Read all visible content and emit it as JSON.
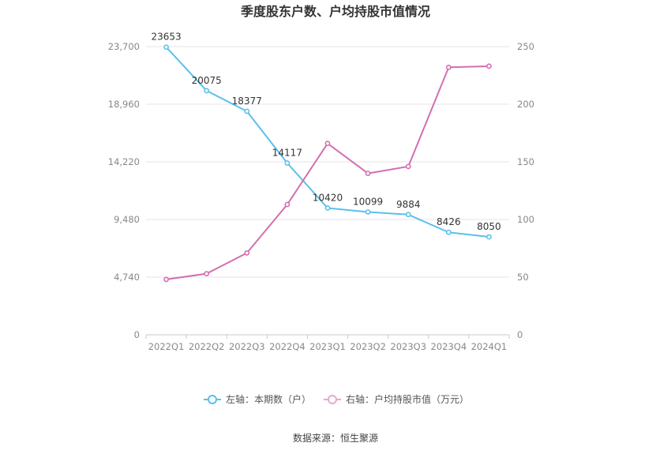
{
  "chart_data": {
    "type": "line",
    "title": "季度股东户数、户均持股市值情况",
    "categories": [
      "2022Q1",
      "2022Q2",
      "2022Q3",
      "2022Q4",
      "2023Q1",
      "2023Q2",
      "2023Q3",
      "2023Q4",
      "2024Q1"
    ],
    "left_axis": {
      "ticks": [
        "0",
        "4,740",
        "9,480",
        "14,220",
        "18,960",
        "23,700"
      ],
      "ylim": [
        0,
        23700
      ]
    },
    "right_axis": {
      "ticks": [
        "0",
        "50",
        "100",
        "150",
        "200",
        "250"
      ],
      "ylim": [
        0,
        250
      ]
    },
    "series": [
      {
        "name": "左轴：本期数（户）",
        "axis": "left",
        "color": "#5bc0eb",
        "values": [
          23653,
          20075,
          18377,
          14117,
          10420,
          10099,
          9884,
          8426,
          8050
        ],
        "labels": [
          "23653",
          "20075",
          "18377",
          "14117",
          "10420",
          "10099",
          "9884",
          "8426",
          "8050"
        ]
      },
      {
        "name": "右轴：户均持股市值（万元）",
        "axis": "right",
        "color": "#d36fb0",
        "values": [
          48,
          53,
          71,
          113,
          166,
          140,
          146,
          232,
          233
        ]
      }
    ],
    "grid": true,
    "legend_position": "bottom"
  },
  "source": "数据来源：恒生聚源"
}
